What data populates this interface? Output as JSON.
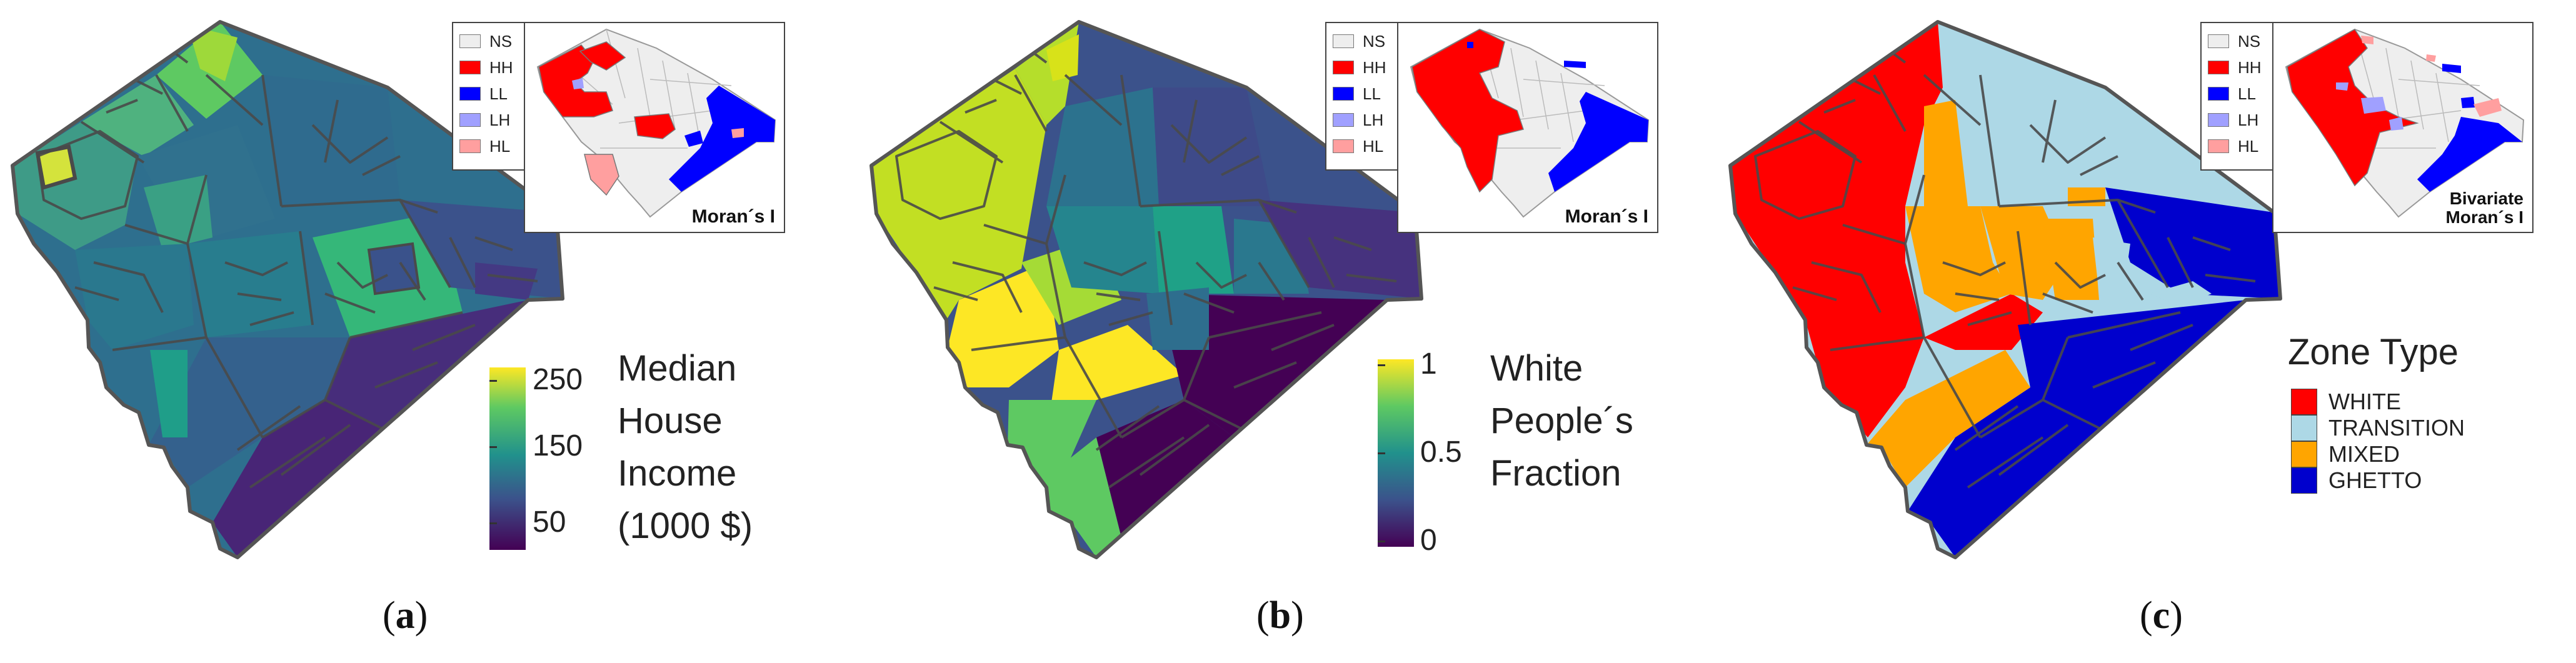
{
  "inset_legend": {
    "items": [
      {
        "label": "NS",
        "color": "#eeeeee"
      },
      {
        "label": "HH",
        "color": "#ff0000"
      },
      {
        "label": "LL",
        "color": "#0000ff"
      },
      {
        "label": "LH",
        "color": "#a0a0ff"
      },
      {
        "label": "HL",
        "color": "#ff9f9f"
      }
    ]
  },
  "panels": {
    "a": {
      "label_open": "(",
      "label_letter": "a",
      "label_close": ")",
      "inset_caption": "Moran´s I",
      "legend_title_lines": [
        "Median",
        "House",
        "Income",
        "(1000 $)"
      ],
      "colorbar_ticks": [
        "250",
        "150",
        "50"
      ],
      "colorbar_range": [
        20,
        260
      ],
      "colors": [
        "#440154",
        "#3b528b",
        "#21918c",
        "#5ec962",
        "#fde725"
      ]
    },
    "b": {
      "label_open": "(",
      "label_letter": "b",
      "label_close": ")",
      "inset_caption": "Moran´s I",
      "legend_title_lines": [
        "White",
        "People´s",
        "Fraction"
      ],
      "colorbar_ticks": [
        "1",
        "0.5",
        "0"
      ],
      "colorbar_range": [
        0,
        1
      ],
      "colors": [
        "#440154",
        "#3b528b",
        "#21918c",
        "#5ec962",
        "#fde725"
      ]
    },
    "c": {
      "label_open": "(",
      "label_letter": "c",
      "label_close": ")",
      "inset_caption_lines": [
        "Bivariate",
        "Moran´s I"
      ],
      "legend_title": "Zone Type",
      "categories": [
        {
          "label": "WHITE",
          "color": "#ff0000"
        },
        {
          "label": "TRANSITION",
          "color": "#add8e6"
        },
        {
          "label": "MIXED",
          "color": "#ffa500"
        },
        {
          "label": "GHETTO",
          "color": "#0000cd"
        }
      ]
    }
  }
}
